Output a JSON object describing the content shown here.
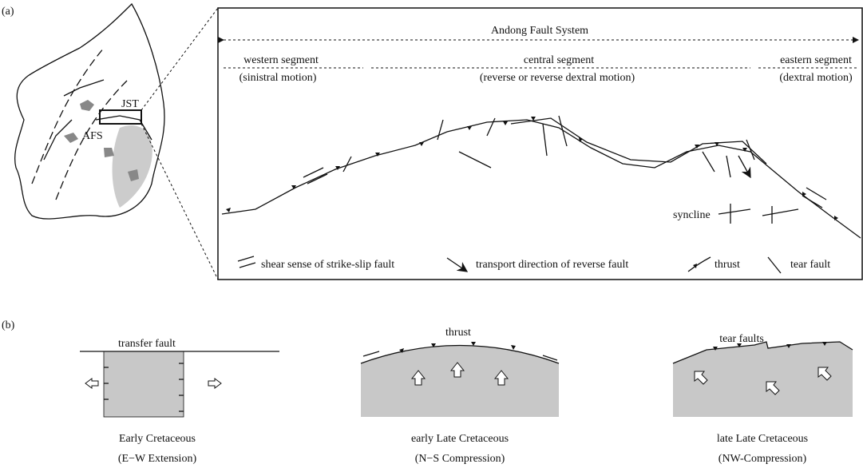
{
  "panel_a": {
    "label": "(a)",
    "map_labels": [
      "JST",
      "AFS"
    ],
    "system_title": "Andong Fault System",
    "segments": [
      {
        "name": "western segment",
        "motion": "(sinistral motion)"
      },
      {
        "name": "central segment",
        "motion": "(reverse or reverse dextral motion)"
      },
      {
        "name": "eastern segment",
        "motion": "(dextral motion)"
      }
    ],
    "syncline": "syncline",
    "legend": [
      "shear sense of strike-slip fault",
      "transport direction of reverse fault",
      "thrust",
      "tear fault"
    ]
  },
  "panel_b": {
    "label": "(b)",
    "stages": [
      {
        "fault_label": "transfer fault",
        "period": "Early Cretaceous",
        "regime": "(E−W Extension)"
      },
      {
        "fault_label": "thrust",
        "period": "early Late Cretaceous",
        "regime": "(N−S Compression)"
      },
      {
        "fault_label": "tear faults",
        "period": "late Late Cretaceous",
        "regime": "(NW-Compression)"
      }
    ]
  }
}
